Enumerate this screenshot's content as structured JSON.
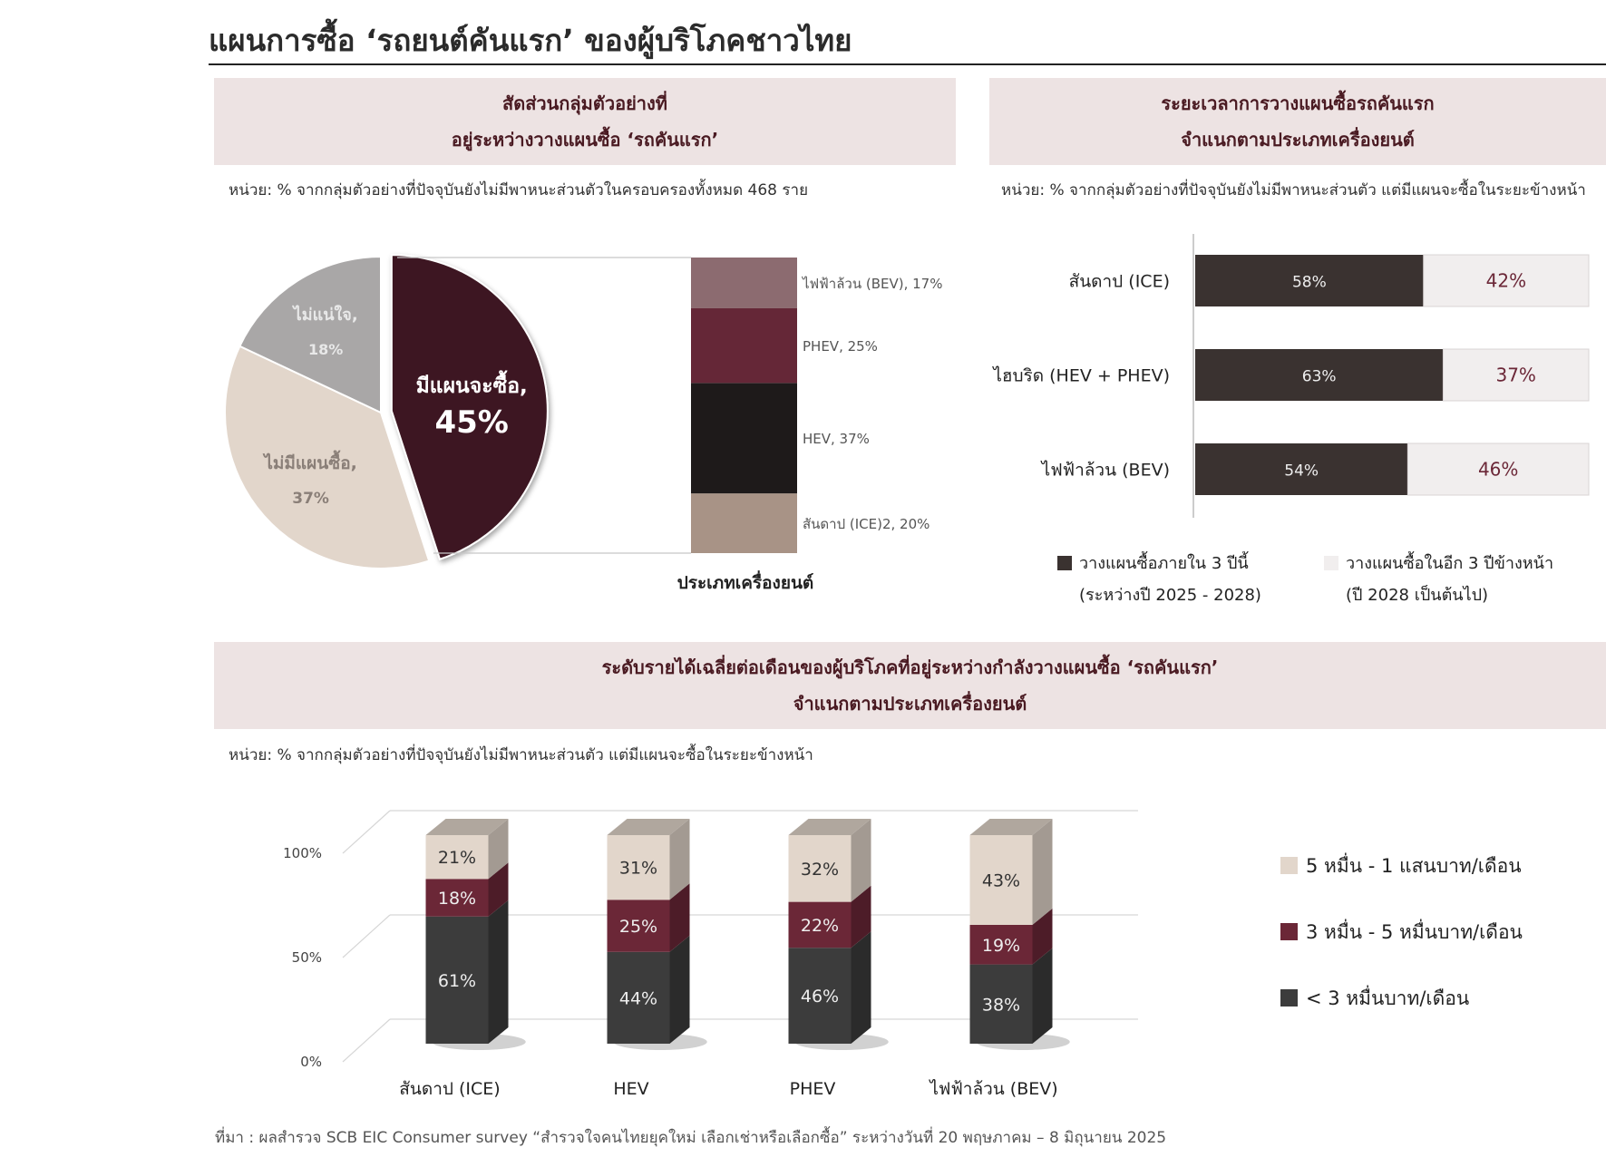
{
  "title": "แผนการซื้อ ‘รถยนต์คันแรก’ ของผู้บริโภคชาวไทย",
  "panel1": {
    "heading_line1": "สัดส่วนกลุ่มตัวอย่างที่",
    "heading_line2": "อยู่ระหว่างวางแผนซื้อ ‘รถคันแรก’",
    "unit": "หน่วย: % จากกลุ่มตัวอย่างที่ปัจจุบันยังไม่มีพาหนะส่วนตัวในครอบครองทั้งหมด 468 ราย",
    "xlabel": "ประเภทเครื่องยนต์"
  },
  "panel2": {
    "heading_line1": "ระยะเวลาการวางแผนซื้อรถคันแรก",
    "heading_line2": "จำแนกตามประเภทเครื่องยนต์",
    "unit": "หน่วย: % จากกลุ่มตัวอย่างที่ปัจจุบันยังไม่มีพาหนะส่วนตัว แต่มีแผนจะซื้อในระยะข้างหน้า",
    "legend": [
      {
        "line1": "วางแผนซื้อภายใน 3 ปีนี้",
        "line2": "(ระหว่างปี 2025 - 2028)",
        "color": "#3a3230"
      },
      {
        "line1": "วางแผนซื้อในอีก 3 ปีข้างหน้า",
        "line2": "(ปี 2028 เป็นต้นไป)",
        "color": "#f1eeee"
      }
    ]
  },
  "panel3": {
    "heading_line1": "ระดับรายได้เฉลี่ยต่อเดือนของผู้บริโภคที่อยู่ระหว่างกำลังวางแผนซื้อ ‘รถคันแรก’",
    "heading_line2": "จำแนกตามประเภทเครื่องยนต์",
    "unit": "หน่วย: % จากกลุ่มตัวอย่างที่ปัจจุบันยังไม่มีพาหนะส่วนตัว แต่มีแผนจะซื้อในระยะข้างหน้า",
    "legend": [
      {
        "label": "5 หมื่น - 1 แสนบาท/เดือน",
        "color": "#e2d6cb"
      },
      {
        "label": "3 หมื่น - 5 หมื่นบาท/เดือน",
        "color": "#6b2737"
      },
      {
        "label": "< 3 หมื่นบาท/เดือน",
        "color": "#3c3c3c"
      }
    ]
  },
  "source": "ที่มา : ผลสำรวจ SCB EIC Consumer survey “สำรวจใจคนไทยยุคใหม่ เลือกเช่าหรือเลือกซื้อ” ระหว่างวันที่ 20 พฤษภาคม – 8 มิถุนายน 2025",
  "chart_data": [
    {
      "type": "pie",
      "slices": [
        {
          "label": "มีแผนจะซื้อ,",
          "value_label": "45%",
          "value": 45,
          "color": "#3c1820"
        },
        {
          "label": "ไม่มีแผนซื้อ,",
          "value_label": "37%",
          "value": 37,
          "color": "#e2d6cb"
        },
        {
          "label": "ไม่แน่ใจ,",
          "value_label": "18%",
          "value": 18,
          "color": "#a9a7a7"
        }
      ]
    },
    {
      "type": "bar",
      "stacked": true,
      "segments": [
        {
          "label": "สันดาป (ICE)2, 20%",
          "value": 20,
          "color": "#a89386"
        },
        {
          "label": "HEV, 37%",
          "value": 37,
          "color": "#1e1a1a"
        },
        {
          "label": "PHEV, 25%",
          "value": 25,
          "color": "#652737"
        },
        {
          "label": "ไฟฟ้าล้วน (BEV), 17%",
          "value": 17,
          "color": "#8c6b70"
        }
      ]
    },
    {
      "type": "bar",
      "orientation": "horizontal",
      "stacked": true,
      "categories": [
        "สันดาป (ICE)",
        "ไฮบริด (HEV + PHEV)",
        "ไฟฟ้าล้วน (BEV)"
      ],
      "series": [
        {
          "name": "วางแผนซื้อภายใน 3 ปีนี้",
          "values": [
            58,
            63,
            54
          ],
          "labels": [
            "58%",
            "63%",
            "54%"
          ],
          "color": "#3a3230"
        },
        {
          "name": "วางแผนซื้อในอีก 3 ปีข้างหน้า",
          "values": [
            42,
            37,
            46
          ],
          "labels": [
            "42%",
            "37%",
            "46%"
          ],
          "color": "#f1eeee"
        }
      ]
    },
    {
      "type": "bar",
      "stacked": true,
      "categories": [
        "สันดาป (ICE)",
        "HEV",
        "PHEV",
        "ไฟฟ้าล้วน (BEV)"
      ],
      "yticks": [
        "100%",
        "50%",
        "0%"
      ],
      "ylim": [
        0,
        100
      ],
      "series": [
        {
          "name": "< 3 หมื่นบาท/เดือน",
          "values": [
            61,
            44,
            46,
            38
          ],
          "labels": [
            "61%",
            "44%",
            "46%",
            "38%"
          ],
          "color": "#3c3c3c"
        },
        {
          "name": "3 หมื่น - 5 หมื่นบาท/เดือน",
          "values": [
            18,
            25,
            22,
            19
          ],
          "labels": [
            "18%",
            "25%",
            "22%",
            "19%"
          ],
          "color": "#6b2737"
        },
        {
          "name": "5 หมื่น - 1 แสนบาท/เดือน",
          "values": [
            21,
            31,
            32,
            43
          ],
          "labels": [
            "21%",
            "31%",
            "32%",
            "43%"
          ],
          "color": "#e2d6cb"
        }
      ]
    }
  ]
}
